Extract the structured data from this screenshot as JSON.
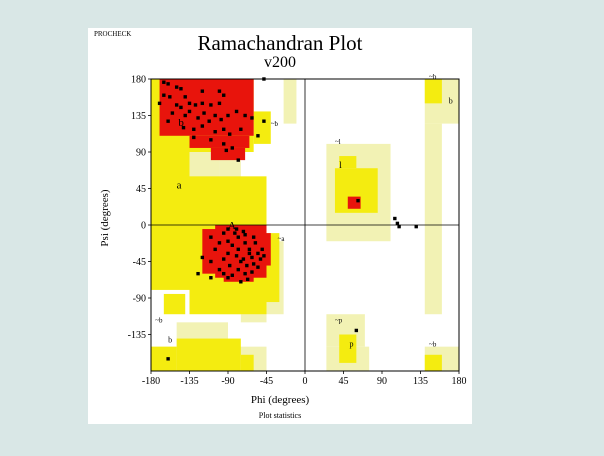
{
  "chart_data": {
    "type": "scatter",
    "tool": "PROCHECK",
    "title": "Ramachandran Plot",
    "subtitle": "v200",
    "xlabel": "Phi (degrees)",
    "ylabel": "Psi (degrees)",
    "footer": "Plot statistics",
    "xlim": [
      -180,
      180
    ],
    "ylim": [
      -180,
      180
    ],
    "xticks": [
      -180,
      -135,
      -90,
      -45,
      0,
      45,
      90,
      135,
      180
    ],
    "yticks": [
      180,
      135,
      90,
      45,
      0,
      -45,
      -90,
      -135
    ],
    "colors": {
      "core": "#e8140c",
      "allowed": "#f4ec10",
      "generous": "#f2f2b4",
      "generous_dark": "#ece8b8",
      "axis": "#000000",
      "point": "#000000"
    },
    "regions": {
      "generous": [
        [
          -180,
          -100,
          -80,
          180
        ],
        [
          -100,
          -75,
          -110,
          180
        ],
        [
          -75,
          -45,
          -120,
          -10
        ],
        [
          -45,
          -25,
          -110,
          -20
        ],
        [
          -180,
          -45,
          -180,
          -150
        ],
        [
          -150,
          -90,
          -150,
          -120
        ],
        [
          -25,
          -10,
          125,
          180
        ],
        [
          140,
          180,
          125,
          180
        ],
        [
          140,
          160,
          -110,
          125
        ],
        [
          25,
          100,
          -20,
          100
        ],
        [
          25,
          70,
          -150,
          -110
        ],
        [
          25,
          75,
          -180,
          -150
        ],
        [
          140,
          180,
          -180,
          -150
        ]
      ],
      "allowed": [
        [
          -180,
          -60,
          90,
          180
        ],
        [
          -60,
          -40,
          100,
          140
        ],
        [
          -180,
          -135,
          -80,
          90
        ],
        [
          -135,
          -45,
          -110,
          60
        ],
        [
          -45,
          -30,
          -95,
          -10
        ],
        [
          -180,
          -150,
          -180,
          -150
        ],
        [
          -150,
          -75,
          -180,
          -140
        ],
        [
          -75,
          -60,
          -180,
          -160
        ],
        [
          -165,
          -140,
          -110,
          -85
        ],
        [
          35,
          85,
          15,
          70
        ],
        [
          40,
          60,
          70,
          85
        ],
        [
          40,
          60,
          -170,
          -135
        ],
        [
          140,
          160,
          150,
          180
        ],
        [
          140,
          160,
          -180,
          -160
        ]
      ],
      "core": [
        [
          -170,
          -60,
          110,
          180
        ],
        [
          -135,
          -65,
          95,
          110
        ],
        [
          -110,
          -70,
          80,
          95
        ],
        [
          -160,
          -150,
          150,
          180
        ],
        [
          -120,
          -55,
          -60,
          -5
        ],
        [
          -105,
          -45,
          -65,
          0
        ],
        [
          -95,
          -60,
          -70,
          -60
        ],
        [
          -75,
          -40,
          -50,
          -10
        ],
        [
          50,
          65,
          20,
          35
        ]
      ]
    },
    "region_labels": [
      {
        "text": "b",
        "phi": -148,
        "psi": 122,
        "size": 11
      },
      {
        "text": "A",
        "phi": -90,
        "psi": -5,
        "size": 11
      },
      {
        "text": "a",
        "phi": -150,
        "psi": 45,
        "size": 11
      },
      {
        "text": "~b",
        "phi": -40,
        "psi": 122,
        "size": 7
      },
      {
        "text": "~a",
        "phi": -32,
        "psi": -20,
        "size": 7
      },
      {
        "text": "~l",
        "phi": 35,
        "psi": 100,
        "size": 7
      },
      {
        "text": "l",
        "phi": 40,
        "psi": 70,
        "size": 9
      },
      {
        "text": "~b",
        "phi": 145,
        "psi": 180,
        "size": 7
      },
      {
        "text": "b",
        "phi": 168,
        "psi": 150,
        "size": 8
      },
      {
        "text": "~b",
        "phi": -175,
        "psi": -120,
        "size": 7
      },
      {
        "text": "b",
        "phi": -160,
        "psi": -145,
        "size": 8
      },
      {
        "text": "~p",
        "phi": 35,
        "psi": -120,
        "size": 7
      },
      {
        "text": "p",
        "phi": 52,
        "psi": -150,
        "size": 8
      },
      {
        "text": "~b",
        "phi": 145,
        "psi": -150,
        "size": 7
      }
    ],
    "points": [
      [
        -165,
        176
      ],
      [
        -160,
        174
      ],
      [
        -150,
        170
      ],
      [
        -145,
        168
      ],
      [
        -165,
        160
      ],
      [
        -158,
        158
      ],
      [
        -140,
        158
      ],
      [
        -120,
        165
      ],
      [
        -100,
        165
      ],
      [
        -170,
        150
      ],
      [
        -150,
        148
      ],
      [
        -145,
        145
      ],
      [
        -135,
        150
      ],
      [
        -128,
        148
      ],
      [
        -120,
        150
      ],
      [
        -110,
        148
      ],
      [
        -100,
        150
      ],
      [
        -95,
        160
      ],
      [
        -155,
        138
      ],
      [
        -140,
        135
      ],
      [
        -135,
        140
      ],
      [
        -125,
        132
      ],
      [
        -118,
        138
      ],
      [
        -112,
        128
      ],
      [
        -105,
        135
      ],
      [
        -98,
        130
      ],
      [
        -90,
        135
      ],
      [
        -80,
        140
      ],
      [
        -70,
        135
      ],
      [
        -62,
        132
      ],
      [
        -48,
        128
      ],
      [
        -142,
        120
      ],
      [
        -130,
        118
      ],
      [
        -120,
        122
      ],
      [
        -105,
        115
      ],
      [
        -95,
        118
      ],
      [
        -88,
        112
      ],
      [
        -75,
        118
      ],
      [
        -130,
        108
      ],
      [
        -110,
        105
      ],
      [
        -95,
        100
      ],
      [
        -92,
        92
      ],
      [
        -85,
        95
      ],
      [
        -78,
        80
      ],
      [
        -55,
        110
      ],
      [
        -160,
        128
      ],
      [
        -90,
        -5
      ],
      [
        -80,
        -5
      ],
      [
        -78,
        -15
      ],
      [
        -72,
        -8
      ],
      [
        -90,
        -20
      ],
      [
        -100,
        -22
      ],
      [
        -85,
        -25
      ],
      [
        -78,
        -30
      ],
      [
        -70,
        -22
      ],
      [
        -65,
        -30
      ],
      [
        -58,
        -22
      ],
      [
        -62,
        -40
      ],
      [
        -55,
        -35
      ],
      [
        -60,
        -48
      ],
      [
        -68,
        -50
      ],
      [
        -72,
        -42
      ],
      [
        -80,
        -38
      ],
      [
        -90,
        -35
      ],
      [
        -95,
        -42
      ],
      [
        -88,
        -50
      ],
      [
        -78,
        -55
      ],
      [
        -70,
        -60
      ],
      [
        -62,
        -58
      ],
      [
        -55,
        -52
      ],
      [
        -52,
        -42
      ],
      [
        -48,
        -38
      ],
      [
        -65,
        -35
      ],
      [
        -75,
        -45
      ],
      [
        -100,
        -55
      ],
      [
        -110,
        -45
      ],
      [
        -105,
        -30
      ],
      [
        -110,
        -15
      ],
      [
        -95,
        -60
      ],
      [
        -85,
        -62
      ],
      [
        -110,
        -65
      ],
      [
        -125,
        -60
      ],
      [
        -50,
        -30
      ],
      [
        -75,
        -70
      ],
      [
        -120,
        -40
      ],
      [
        -95,
        -10
      ],
      [
        -82,
        -10
      ],
      [
        -70,
        -12
      ],
      [
        -60,
        -15
      ],
      [
        -90,
        -65
      ],
      [
        -67,
        -67
      ],
      [
        62,
        30
      ],
      [
        105,
        8
      ],
      [
        108,
        2
      ],
      [
        110,
        -2
      ],
      [
        130,
        -2
      ],
      [
        60,
        -130
      ],
      [
        -160,
        -165
      ],
      [
        -48,
        180
      ]
    ]
  }
}
